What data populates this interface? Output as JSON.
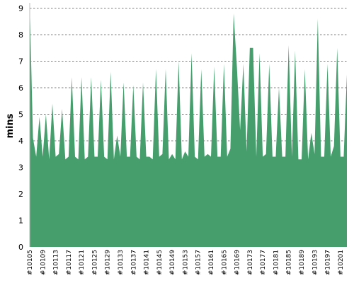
{
  "chart_data": {
    "type": "area",
    "title": "",
    "xlabel": "",
    "ylabel": "mins",
    "ylim": [
      0,
      9.2
    ],
    "yticks": [
      0,
      1,
      2,
      3,
      4,
      5,
      6,
      7,
      8,
      9
    ],
    "grid": true,
    "fill_color": "#459e6c",
    "categories": [
      "#10105",
      "#10106",
      "#10107",
      "#10108",
      "#10109",
      "#10110",
      "#10111",
      "#10112",
      "#10113",
      "#10114",
      "#10115",
      "#10116",
      "#10117",
      "#10118",
      "#10119",
      "#10120",
      "#10121",
      "#10122",
      "#10123",
      "#10124",
      "#10125",
      "#10126",
      "#10127",
      "#10128",
      "#10129",
      "#10130",
      "#10131",
      "#10132",
      "#10133",
      "#10134",
      "#10135",
      "#10136",
      "#10137",
      "#10138",
      "#10139",
      "#10140",
      "#10141",
      "#10142",
      "#10143",
      "#10144",
      "#10145",
      "#10146",
      "#10147",
      "#10148",
      "#10149",
      "#10150",
      "#10151",
      "#10152",
      "#10153",
      "#10154",
      "#10155",
      "#10156",
      "#10157",
      "#10158",
      "#10159",
      "#10160",
      "#10161",
      "#10162",
      "#10163",
      "#10164",
      "#10165",
      "#10166",
      "#10167",
      "#10168",
      "#10169",
      "#10170",
      "#10171",
      "#10172",
      "#10173",
      "#10174",
      "#10175",
      "#10176",
      "#10177",
      "#10178",
      "#10179",
      "#10180",
      "#10181",
      "#10182",
      "#10183",
      "#10184",
      "#10185",
      "#10186",
      "#10187",
      "#10188",
      "#10189",
      "#10190",
      "#10191",
      "#10192",
      "#10193",
      "#10194",
      "#10195",
      "#10196",
      "#10197",
      "#10198",
      "#10199",
      "#10200",
      "#10201",
      "#10202",
      "#10203"
    ],
    "values": [
      9.2,
      4.1,
      3.4,
      4.9,
      3.4,
      5.0,
      3.3,
      5.4,
      3.4,
      3.5,
      5.2,
      3.3,
      3.4,
      6.4,
      3.4,
      3.3,
      6.4,
      3.3,
      3.4,
      6.4,
      3.4,
      3.4,
      6.3,
      3.4,
      3.3,
      6.6,
      3.3,
      4.2,
      3.4,
      6.2,
      3.4,
      3.4,
      6.1,
      3.4,
      3.3,
      6.2,
      3.4,
      3.4,
      3.3,
      6.7,
      3.4,
      3.5,
      6.7,
      3.3,
      3.5,
      3.3,
      7.0,
      3.3,
      3.6,
      3.4,
      7.3,
      3.4,
      3.3,
      6.7,
      3.4,
      3.5,
      3.4,
      6.8,
      3.4,
      3.4,
      6.9,
      3.4,
      3.7,
      8.8,
      6.8,
      4.4,
      6.9,
      3.6,
      7.5,
      7.5,
      3.4,
      7.3,
      3.4,
      3.5,
      6.9,
      3.4,
      3.4,
      6.0,
      3.4,
      3.4,
      7.6,
      3.4,
      7.4,
      3.3,
      3.3,
      6.7,
      3.3,
      4.3,
      3.5,
      8.6,
      3.4,
      3.4,
      6.9,
      3.4,
      3.8,
      7.5,
      3.4,
      3.4,
      6.5
    ],
    "x_tick_every": 4,
    "x_tick_start_index": 0
  }
}
